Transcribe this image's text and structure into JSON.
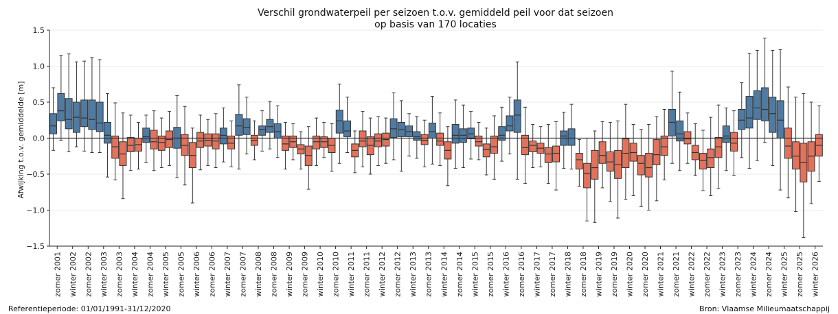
{
  "chart_data": {
    "type": "box",
    "title_line1": "Verschil grondwaterpeil per seizoen t.o.v. gemiddeld peil voor dat seizoen",
    "title_line2": "op basis van 170 locaties",
    "ylabel": "Afwijking t.o.v. gemiddelde [m]",
    "ylim": [
      -1.5,
      1.5
    ],
    "yticks": [
      -1.5,
      -1.0,
      -0.5,
      0.0,
      0.5,
      1.0,
      1.5
    ],
    "ytick_labels": [
      "−1.5",
      "−1.0",
      "−0.5",
      "0.0",
      "0.5",
      "1.0",
      "1.5"
    ],
    "reference_line": 0.0,
    "colors": {
      "positive": "#4f7ba3",
      "negative": "#e2725b"
    },
    "xtick_labels": [
      "zomer 2001",
      "winter 2002",
      "zomer 2002",
      "winter 2003",
      "zomer 2003",
      "winter 2004",
      "zomer 2004",
      "winter 2005",
      "zomer 2005",
      "winter 2006",
      "zomer 2006",
      "winter 2007",
      "zomer 2007",
      "winter 2008",
      "zomer 2008",
      "winter 2009",
      "zomer 2009",
      "winter 2010",
      "zomer 2010",
      "winter 2011",
      "zomer 2011",
      "winter 2012",
      "zomer 2012",
      "winter 2013",
      "zomer 2013",
      "winter 2014",
      "zomer 2014",
      "winter 2015",
      "zomer 2015",
      "winter 2016",
      "zomer 2016",
      "winter 2017",
      "zomer 2017",
      "winter 2018",
      "zomer 2018",
      "winter 2019",
      "zomer 2019",
      "winter 2020",
      "zomer 2020",
      "winter 2021",
      "zomer 2021",
      "winter 2022",
      "zomer 2022",
      "winter 2023",
      "zomer 2023",
      "winter 2024",
      "zomer 2024",
      "winter 2025",
      "zomer 2025",
      "winter 2026"
    ],
    "boxes": [
      [
        -0.17,
        0.06,
        0.17,
        0.34,
        0.7
      ],
      [
        -0.03,
        0.24,
        0.38,
        0.62,
        1.15
      ],
      [
        -0.19,
        0.13,
        0.26,
        0.55,
        1.17
      ],
      [
        -0.12,
        0.08,
        0.29,
        0.5,
        1.06
      ],
      [
        -0.18,
        0.16,
        0.28,
        0.53,
        1.07
      ],
      [
        -0.2,
        0.12,
        0.26,
        0.53,
        1.12
      ],
      [
        -0.2,
        0.09,
        0.21,
        0.5,
        1.09
      ],
      [
        -0.54,
        -0.07,
        0.04,
        0.22,
        0.62
      ],
      [
        -0.58,
        -0.28,
        -0.12,
        0.03,
        0.49
      ],
      [
        -0.84,
        -0.38,
        -0.22,
        -0.05,
        0.35
      ],
      [
        -0.45,
        -0.19,
        -0.1,
        0.01,
        0.32
      ],
      [
        -0.43,
        -0.18,
        -0.09,
        0.0,
        0.22
      ],
      [
        -0.34,
        -0.06,
        0.02,
        0.14,
        0.32
      ],
      [
        -0.45,
        -0.15,
        -0.05,
        0.11,
        0.38
      ],
      [
        -0.41,
        -0.17,
        -0.06,
        0.03,
        0.28
      ],
      [
        -0.38,
        -0.13,
        -0.02,
        0.1,
        0.37
      ],
      [
        -0.55,
        -0.14,
        0.0,
        0.15,
        0.59
      ],
      [
        -0.65,
        -0.24,
        -0.1,
        0.05,
        0.44
      ],
      [
        -0.9,
        -0.41,
        -0.24,
        -0.06,
        0.14
      ],
      [
        -0.44,
        -0.13,
        -0.04,
        0.08,
        0.32
      ],
      [
        -0.38,
        -0.11,
        -0.03,
        0.06,
        0.26
      ],
      [
        -0.41,
        -0.15,
        -0.04,
        0.06,
        0.34
      ],
      [
        -0.33,
        -0.08,
        0.04,
        0.14,
        0.42
      ],
      [
        -0.4,
        -0.15,
        -0.07,
        0.03,
        0.24
      ],
      [
        -0.43,
        0.04,
        0.17,
        0.33,
        0.74
      ],
      [
        -0.22,
        0.05,
        0.15,
        0.27,
        0.57
      ],
      [
        -0.3,
        -0.1,
        -0.03,
        0.04,
        0.24
      ],
      [
        -0.18,
        0.04,
        0.12,
        0.17,
        0.38
      ],
      [
        -0.15,
        0.08,
        0.16,
        0.26,
        0.51
      ],
      [
        -0.27,
        0.0,
        0.09,
        0.2,
        0.45
      ],
      [
        -0.43,
        -0.17,
        -0.08,
        0.03,
        0.22
      ],
      [
        -0.3,
        -0.13,
        -0.05,
        0.03,
        0.2
      ],
      [
        -0.43,
        -0.22,
        -0.15,
        -0.09,
        0.09
      ],
      [
        -0.71,
        -0.38,
        -0.24,
        -0.11,
        0.16
      ],
      [
        -0.38,
        -0.15,
        -0.05,
        0.03,
        0.28
      ],
      [
        -0.27,
        -0.13,
        -0.05,
        0.02,
        0.22
      ],
      [
        -0.46,
        -0.2,
        -0.1,
        0.0,
        0.2
      ],
      [
        -0.35,
        0.07,
        0.24,
        0.39,
        0.75
      ],
      [
        -0.2,
        0.02,
        0.1,
        0.24,
        0.57
      ],
      [
        -0.48,
        -0.26,
        -0.17,
        -0.08,
        0.1
      ],
      [
        -0.4,
        -0.12,
        -0.04,
        0.1,
        0.37
      ],
      [
        -0.5,
        -0.23,
        -0.1,
        0.02,
        0.28
      ],
      [
        -0.38,
        -0.12,
        -0.04,
        0.06,
        0.3
      ],
      [
        -0.35,
        -0.11,
        -0.02,
        0.07,
        0.28
      ],
      [
        -0.3,
        0.01,
        0.13,
        0.27,
        0.63
      ],
      [
        -0.46,
        0.02,
        0.12,
        0.22,
        0.52
      ],
      [
        -0.25,
        0.02,
        0.09,
        0.17,
        0.34
      ],
      [
        -0.28,
        -0.03,
        0.02,
        0.09,
        0.3
      ],
      [
        -0.4,
        -0.09,
        -0.03,
        0.05,
        0.25
      ],
      [
        -0.36,
        0.0,
        0.09,
        0.21,
        0.58
      ],
      [
        -0.38,
        -0.1,
        -0.04,
        0.07,
        0.35
      ],
      [
        -0.66,
        -0.29,
        -0.17,
        -0.05,
        0.16
      ],
      [
        -0.42,
        -0.07,
        0.04,
        0.19,
        0.53
      ],
      [
        -0.41,
        -0.06,
        0.04,
        0.13,
        0.46
      ],
      [
        -0.29,
        -0.01,
        0.06,
        0.14,
        0.37
      ],
      [
        -0.3,
        -0.11,
        -0.05,
        0.03,
        0.22
      ],
      [
        -0.51,
        -0.26,
        -0.16,
        -0.08,
        0.14
      ],
      [
        -0.57,
        -0.21,
        -0.12,
        0.03,
        0.31
      ],
      [
        -0.32,
        -0.03,
        0.04,
        0.16,
        0.43
      ],
      [
        -0.22,
        0.1,
        0.17,
        0.31,
        0.57
      ],
      [
        -0.57,
        0.08,
        0.32,
        0.53,
        1.06
      ],
      [
        -0.63,
        -0.23,
        -0.13,
        0.04,
        0.43
      ],
      [
        -0.41,
        -0.19,
        -0.1,
        -0.04,
        0.19
      ],
      [
        -0.4,
        -0.21,
        -0.14,
        -0.07,
        0.16
      ],
      [
        -0.63,
        -0.34,
        -0.22,
        -0.13,
        0.19
      ],
      [
        -0.72,
        -0.33,
        -0.21,
        -0.11,
        0.23
      ],
      [
        -0.42,
        -0.1,
        0.03,
        0.1,
        0.36
      ],
      [
        -0.43,
        -0.1,
        0.0,
        0.13,
        0.47
      ],
      [
        -0.67,
        -0.43,
        -0.3,
        -0.21,
        -0.02
      ],
      [
        -1.15,
        -0.69,
        -0.49,
        -0.35,
        0.0
      ],
      [
        -1.17,
        -0.57,
        -0.41,
        -0.17,
        0.1
      ],
      [
        -0.69,
        -0.35,
        -0.24,
        -0.05,
        0.23
      ],
      [
        -0.88,
        -0.46,
        -0.33,
        -0.19,
        0.22
      ],
      [
        -1.11,
        -0.56,
        -0.37,
        -0.17,
        0.24
      ],
      [
        -0.85,
        -0.41,
        -0.21,
        -0.01,
        0.47
      ],
      [
        -0.8,
        -0.32,
        -0.2,
        -0.07,
        0.19
      ],
      [
        -0.95,
        -0.51,
        -0.35,
        -0.24,
        0.12
      ],
      [
        -1.0,
        -0.54,
        -0.41,
        -0.21,
        0.19
      ],
      [
        -0.87,
        -0.37,
        -0.23,
        -0.02,
        0.3
      ],
      [
        -0.58,
        -0.24,
        -0.12,
        0.03,
        0.4
      ],
      [
        -0.35,
        0.03,
        0.22,
        0.4,
        0.93
      ],
      [
        -0.45,
        -0.04,
        0.06,
        0.24,
        0.64
      ],
      [
        -0.35,
        -0.08,
        -0.01,
        0.09,
        0.35
      ],
      [
        -0.52,
        -0.3,
        -0.2,
        -0.1,
        0.2
      ],
      [
        -0.73,
        -0.43,
        -0.31,
        -0.21,
        0.11
      ],
      [
        -0.8,
        -0.41,
        -0.27,
        -0.15,
        0.29
      ],
      [
        -0.7,
        -0.27,
        -0.12,
        0.01,
        0.46
      ],
      [
        -0.45,
        -0.06,
        0.03,
        0.17,
        0.42
      ],
      [
        -0.52,
        -0.18,
        -0.07,
        0.08,
        0.38
      ],
      [
        -0.27,
        0.12,
        0.25,
        0.4,
        0.77
      ],
      [
        -0.42,
        0.14,
        0.28,
        0.58,
        1.18
      ],
      [
        -0.31,
        0.26,
        0.42,
        0.66,
        1.22
      ],
      [
        -0.06,
        0.24,
        0.4,
        0.7,
        1.39
      ],
      [
        -0.38,
        0.08,
        0.34,
        0.57,
        1.22
      ],
      [
        -0.72,
        0.0,
        0.25,
        0.52,
        1.23
      ],
      [
        -0.83,
        -0.28,
        -0.11,
        0.14,
        0.71
      ],
      [
        -1.02,
        -0.43,
        -0.25,
        -0.05,
        0.57
      ],
      [
        -1.38,
        -0.61,
        -0.34,
        -0.07,
        0.62
      ],
      [
        -0.91,
        -0.46,
        -0.25,
        -0.05,
        0.5
      ],
      [
        -0.6,
        -0.25,
        -0.1,
        0.05,
        0.45
      ]
    ]
  },
  "footer": {
    "left": "Referentieperiode: 01/01/1991-31/12/2020",
    "right": "Bron: Vlaamse Milieumaatschappij"
  }
}
